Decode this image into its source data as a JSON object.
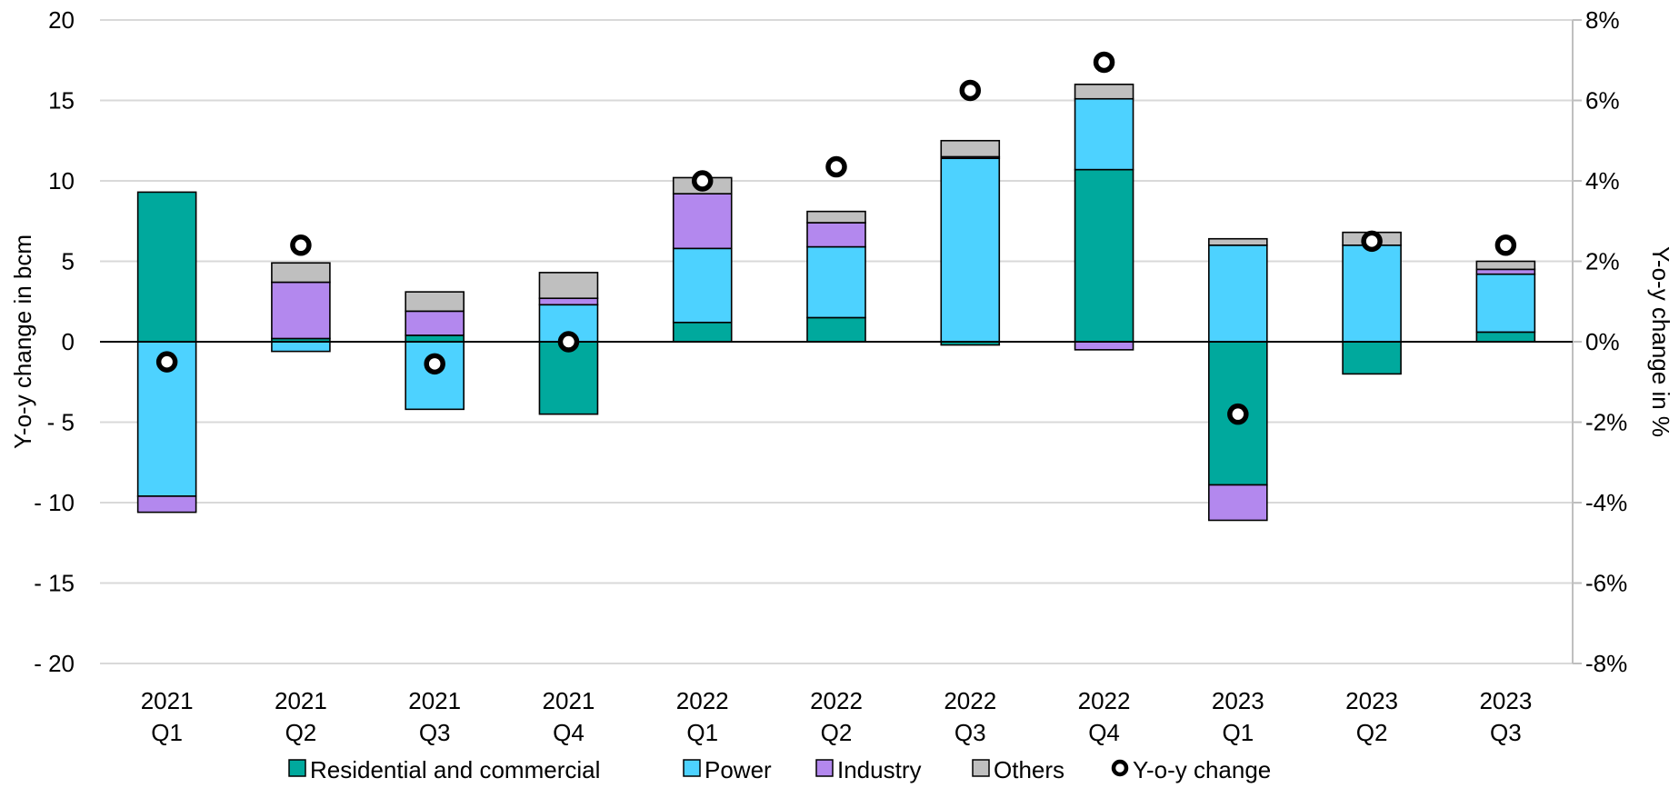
{
  "chart_data": {
    "type": "bar",
    "stacked": true,
    "ylabel": "Y-o-y change in bcm",
    "y2label": "Y-o-y change in %",
    "ylim": [
      -20,
      20
    ],
    "y2lim": [
      -8,
      8
    ],
    "yticks": [
      20,
      15,
      10,
      5,
      0,
      -5,
      -10,
      -15,
      -20
    ],
    "ytick_labels": [
      "20",
      "15",
      "10",
      "5",
      "0",
      "- 5",
      "- 10",
      "- 15",
      "- 20"
    ],
    "y2ticks": [
      8,
      6,
      4,
      2,
      0,
      -2,
      -4,
      -6,
      -8
    ],
    "y2tick_labels": [
      "8%",
      "6%",
      "4%",
      "2%",
      "0%",
      "-2%",
      "-4%",
      "-6%",
      "-8%"
    ],
    "categories": [
      [
        "2021",
        "Q1"
      ],
      [
        "2021",
        "Q2"
      ],
      [
        "2021",
        "Q3"
      ],
      [
        "2021",
        "Q4"
      ],
      [
        "2022",
        "Q1"
      ],
      [
        "2022",
        "Q2"
      ],
      [
        "2022",
        "Q3"
      ],
      [
        "2022",
        "Q4"
      ],
      [
        "2023",
        "Q1"
      ],
      [
        "2023",
        "Q2"
      ],
      [
        "2023",
        "Q3"
      ]
    ],
    "grid": true,
    "legend_position": "bottom",
    "series": [
      {
        "name": "Residential and commercial",
        "color": "#00a99d",
        "values": [
          9.3,
          0.2,
          0.4,
          -4.5,
          1.2,
          1.5,
          -0.2,
          10.7,
          -8.9,
          -2.0,
          0.6
        ]
      },
      {
        "name": "Power",
        "color": "#4dd2ff",
        "values": [
          -9.6,
          -0.6,
          -4.2,
          2.3,
          4.6,
          4.4,
          11.4,
          4.4,
          6.0,
          6.0,
          3.6
        ]
      },
      {
        "name": "Industry",
        "color": "#b388ee",
        "values": [
          -1.0,
          3.5,
          1.5,
          0.4,
          3.4,
          1.5,
          0.1,
          -0.5,
          -2.2,
          0.0,
          0.3
        ]
      },
      {
        "name": "Others",
        "color": "#bfbfbf",
        "values": [
          0.0,
          1.2,
          1.2,
          1.6,
          1.0,
          0.7,
          1.0,
          0.9,
          0.4,
          0.8,
          0.5
        ]
      }
    ],
    "line_series": {
      "name": "Y-o-y change",
      "axis": "secondary",
      "marker": "circle",
      "values": [
        -0.5,
        2.4,
        -0.55,
        0.0,
        4.0,
        4.35,
        6.25,
        6.95,
        -1.8,
        2.5,
        2.4
      ]
    }
  }
}
